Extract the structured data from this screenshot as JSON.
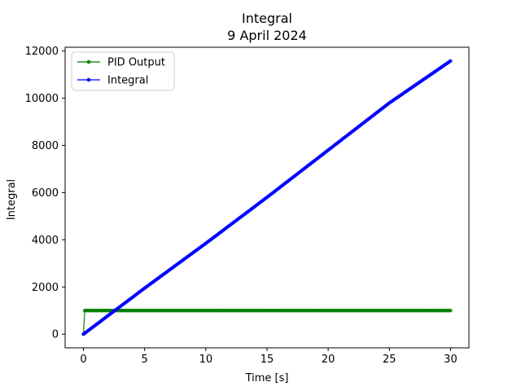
{
  "chart_data": {
    "type": "line",
    "title": "Integral",
    "subtitle": "9 April 2024",
    "xlabel": "Time [s]",
    "ylabel": "Integral",
    "xlim": [
      -1.5,
      31.5
    ],
    "ylim": [
      -580,
      12160
    ],
    "xticks": [
      0,
      5,
      10,
      15,
      20,
      25,
      30
    ],
    "yticks": [
      0,
      2000,
      4000,
      6000,
      8000,
      10000,
      12000
    ],
    "grid": false,
    "legend": "top-left",
    "x_start": 0,
    "x_end": 30,
    "x_step": 0.1,
    "series": [
      {
        "name": "PID Output",
        "color": "#008000",
        "points": [
          [
            0,
            0
          ],
          [
            0.1,
            1000
          ],
          [
            30,
            1000
          ]
        ]
      },
      {
        "name": "Integral",
        "color": "#0000ff",
        "points": [
          [
            0,
            0
          ],
          [
            5,
            1950
          ],
          [
            10,
            3850
          ],
          [
            15,
            5800
          ],
          [
            20,
            7800
          ],
          [
            25,
            9800
          ],
          [
            30,
            11580
          ]
        ]
      }
    ]
  }
}
